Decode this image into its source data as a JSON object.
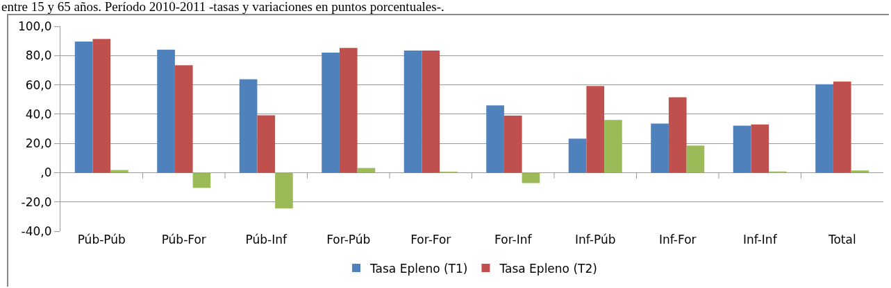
{
  "chart_data": {
    "type": "bar",
    "title": "entre 15 y 65 años. Período 2010-2011 -tasas y variaciones en puntos porcentuales-.",
    "categories": [
      "Púb-Púb",
      "Púb-For",
      "Púb-Inf",
      "For-Púb",
      "For-For",
      "For-Inf",
      "Inf-Púb",
      "Inf-For",
      "Inf-Inf",
      "Total"
    ],
    "series": [
      {
        "name": "Tasa Epleno (T1)",
        "color": "#4f81bd",
        "values": [
          89.6,
          84.0,
          63.8,
          82.0,
          83.4,
          46.0,
          23.3,
          33.5,
          32.1,
          60.4
        ]
      },
      {
        "name": "Tasa Epleno (T2)",
        "color": "#c0504d",
        "values": [
          91.4,
          73.4,
          39.2,
          85.2,
          83.4,
          39.0,
          59.2,
          51.5,
          32.9,
          62.3
        ]
      },
      {
        "color": "#9bbb59",
        "values": [
          1.8,
          -10.4,
          -24.4,
          3.2,
          0.5,
          -7.1,
          36.0,
          18.5,
          0.8,
          1.5
        ]
      }
    ],
    "ylim": [
      -40,
      100
    ],
    "yticks": [
      {
        "value": -40,
        "label": "-40,0"
      },
      {
        "value": -20,
        "label": "-20,0"
      },
      {
        "value": 0,
        "label": ",0"
      },
      {
        "value": 20,
        "label": "20,0"
      },
      {
        "value": 40,
        "label": "40,0"
      },
      {
        "value": 60,
        "label": "60,0"
      },
      {
        "value": 80,
        "label": "80,0"
      },
      {
        "value": 100,
        "label": "100,0"
      }
    ],
    "grid": "y",
    "legend": "bottom"
  }
}
